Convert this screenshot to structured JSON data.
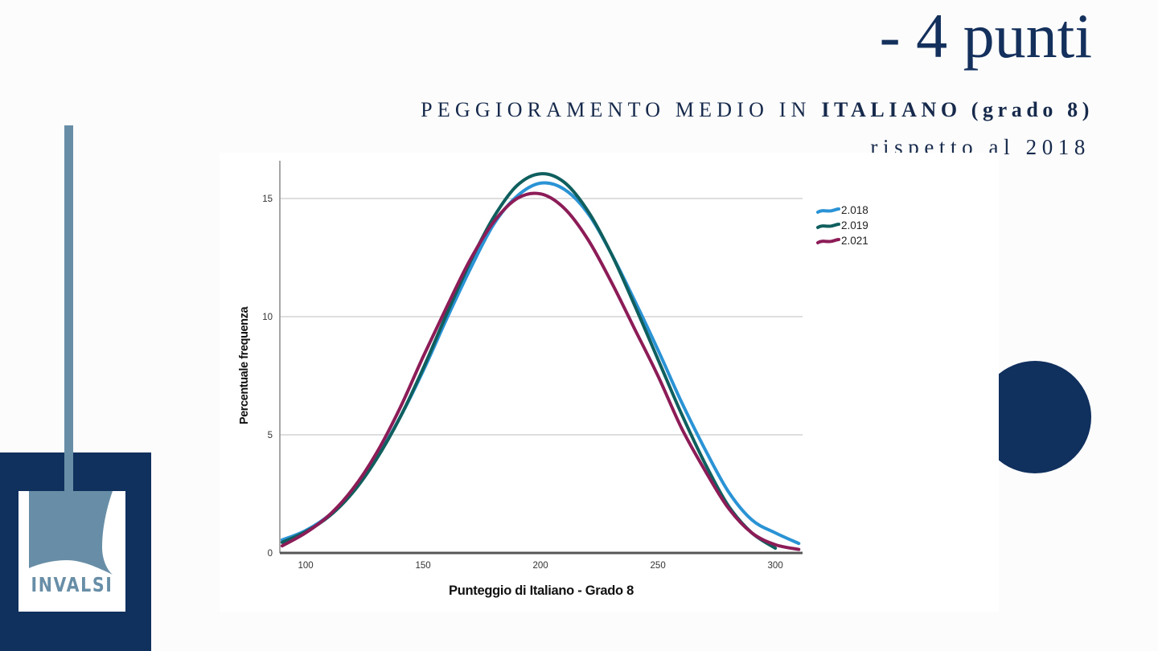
{
  "slide": {
    "headline": "- 4 punti",
    "subtitle_regular": "PEGGIORAMENTO MEDIO IN ",
    "subtitle_bold": "ITALIANO (grado 8)",
    "subtitle_line2": "rispetto al 2018",
    "text_color": "#14305c",
    "accent_navy": "#10305e",
    "accent_steel": "#688ea7"
  },
  "logo": {
    "text": "INVALSI"
  },
  "chart_data": {
    "type": "line",
    "title": "",
    "xlabel": "Punteggio di Italiano - Grado 8",
    "ylabel": "Percentuale frequenza",
    "xlim": [
      89,
      311.6
    ],
    "ylim": [
      0,
      16.6
    ],
    "xticks": [
      100,
      150,
      200,
      250,
      300
    ],
    "yticks": [
      0,
      5,
      10,
      15
    ],
    "grid": "horizontal",
    "legend_position": "right-top",
    "x": [
      90,
      100,
      110,
      120,
      130,
      140,
      150,
      160,
      170,
      180,
      190,
      200,
      210,
      220,
      230,
      240,
      250,
      260,
      270,
      280,
      290,
      300,
      310
    ],
    "series": [
      {
        "name": "2.018",
        "color": "#2a93d5",
        "values": [
          0.55,
          0.95,
          1.6,
          2.6,
          4.0,
          5.7,
          7.7,
          9.9,
          12.0,
          13.9,
          15.1,
          15.65,
          15.4,
          14.4,
          12.7,
          10.7,
          8.6,
          6.4,
          4.4,
          2.6,
          1.4,
          0.85,
          0.4
        ]
      },
      {
        "name": "2.019",
        "color": "#0f5f5e",
        "values": [
          0.45,
          0.9,
          1.55,
          2.55,
          3.95,
          5.7,
          7.8,
          10.1,
          12.3,
          14.2,
          15.55,
          16.05,
          15.7,
          14.5,
          12.7,
          10.5,
          8.2,
          5.9,
          3.8,
          2.0,
          0.85,
          0.2,
          null
        ]
      },
      {
        "name": "2.021",
        "color": "#8c1c57",
        "values": [
          0.3,
          0.85,
          1.6,
          2.7,
          4.2,
          6.1,
          8.3,
          10.4,
          12.4,
          14.0,
          15.0,
          15.2,
          14.6,
          13.3,
          11.5,
          9.5,
          7.5,
          5.3,
          3.5,
          1.9,
          0.85,
          0.35,
          0.15
        ]
      }
    ]
  }
}
